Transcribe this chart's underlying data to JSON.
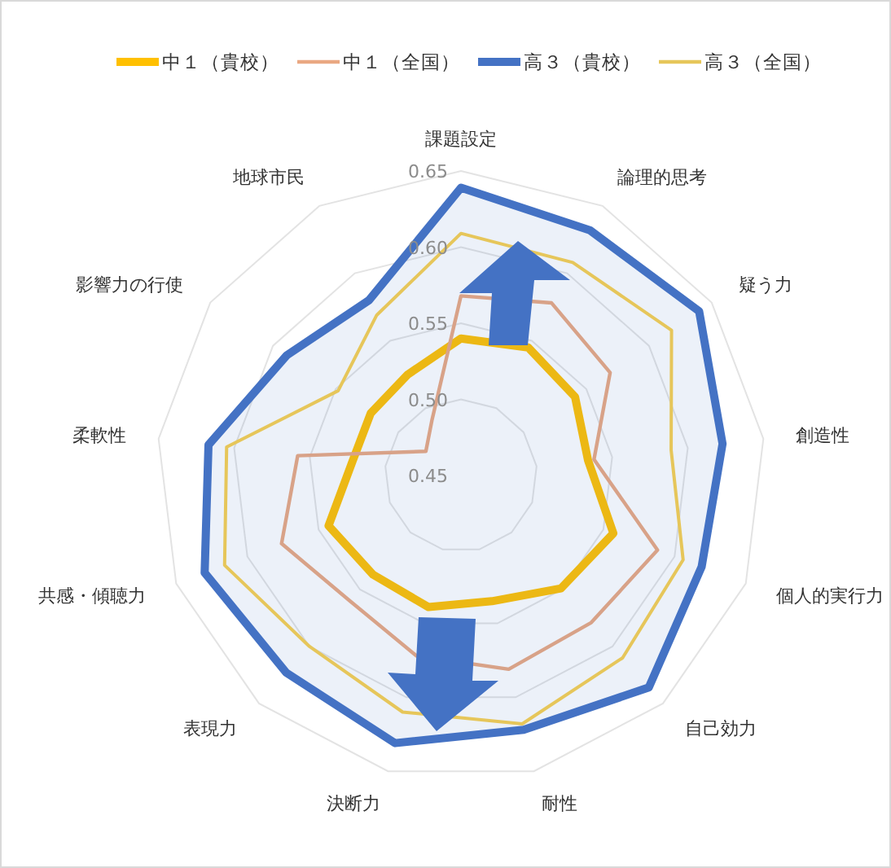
{
  "chart_data": {
    "type": "radar",
    "categories": [
      "課題設定",
      "論理的思考",
      "疑う力",
      "創造性",
      "個人的実行力",
      "自己効力",
      "耐性",
      "決断力",
      "表現力",
      "共感・傾聴力",
      "柔軟性",
      "影響力の行使",
      "地球市民"
    ],
    "ylim": [
      0.45,
      0.65
    ],
    "yticks": [
      0.45,
      {
        "value": 0.5,
        "label": "0.50"
      },
      0.55,
      {
        "value": 0.6,
        "label": "0.60"
      },
      0.65
    ],
    "legend": "top",
    "series": [
      {
        "name": "中１（貴校）",
        "color": "#ffc000",
        "values": [
          0.54,
          0.545,
          0.541,
          0.534,
          0.557,
          0.549,
          0.535,
          0.539,
          0.537,
          0.543,
          0.522,
          0.522,
          0.525
        ]
      },
      {
        "name": "中１（全国）",
        "color": "#e9a882",
        "values": [
          0.568,
          0.578,
          0.569,
          0.538,
          0.588,
          0.579,
          0.581,
          0.572,
          0.56,
          0.576,
          0.558,
          0.478,
          0.491
        ]
      },
      {
        "name": "高３（貴校）",
        "color": "#4472c4",
        "type": "area",
        "values": [
          0.639,
          0.632,
          0.64,
          0.623,
          0.619,
          0.636,
          0.622,
          0.631,
          0.623,
          0.63,
          0.617,
          0.589,
          0.58
        ]
      },
      {
        "name": "高３（全国）",
        "color": "#e6c65a",
        "values": [
          0.609,
          0.608,
          0.618,
          0.589,
          0.606,
          0.61,
          0.618,
          0.61,
          0.6,
          0.616,
          0.605,
          0.548,
          0.569
        ]
      }
    ]
  }
}
